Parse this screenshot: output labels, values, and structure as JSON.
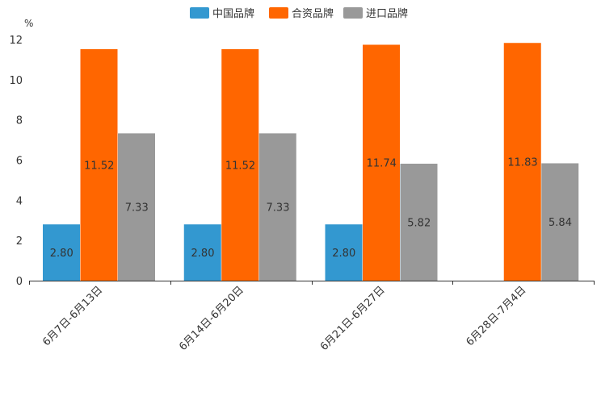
{
  "chart_data": {
    "type": "bar",
    "title": "",
    "xlabel": "",
    "ylabel": "",
    "unit": "%",
    "ylim": [
      0,
      12
    ],
    "yticks": [
      0,
      2,
      4,
      6,
      8,
      10,
      12
    ],
    "categories": [
      "6月7日-6月13日",
      "6月14日-6月20日",
      "6月21日-6月27日",
      "6月28日-7月4日"
    ],
    "series": [
      {
        "name": "中国品牌",
        "color": "#3398d0",
        "values": [
          2.8,
          2.8,
          2.8,
          null
        ],
        "labels": [
          "2.80",
          "2.80",
          "2.80",
          ""
        ]
      },
      {
        "name": "合资品牌",
        "color": "#ff6600",
        "values": [
          11.52,
          11.52,
          11.74,
          11.83
        ],
        "labels": [
          "11.52",
          "11.52",
          "11.74",
          "11.83"
        ]
      },
      {
        "name": "进口品牌",
        "color": "#999999",
        "values": [
          7.33,
          7.33,
          5.82,
          5.84
        ],
        "labels": [
          "7.33",
          "7.33",
          "5.82",
          "5.84"
        ]
      }
    ],
    "legend_position": "top-center",
    "grid": false
  }
}
